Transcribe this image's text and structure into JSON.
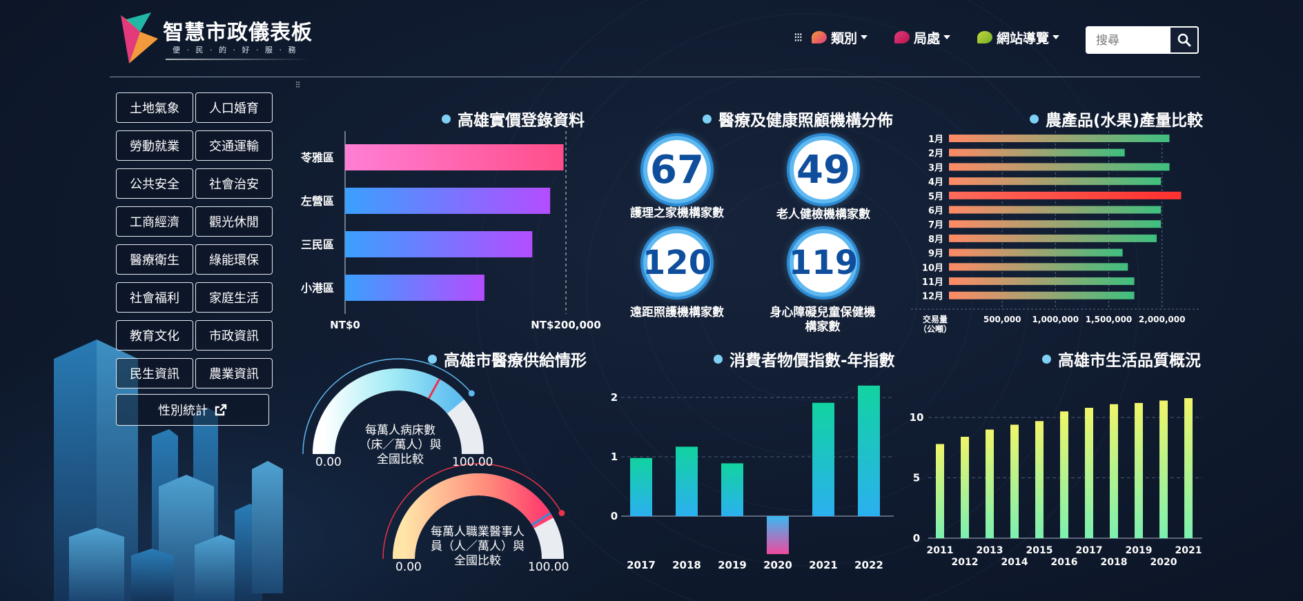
{
  "header": {
    "title": "智慧市政儀表板",
    "subtitle": "便 · 民 · 的 · 好 · 服 · 務",
    "nav": [
      {
        "label": "類別",
        "color": "#f39a3c"
      },
      {
        "label": "局處",
        "color": "#e23a7a"
      },
      {
        "label": "網站導覽",
        "color": "#a8c83a"
      }
    ],
    "search_placeholder": "搜尋"
  },
  "sidebar": {
    "categories": [
      "土地氣象",
      "人口婚育",
      "勞動就業",
      "交通運輸",
      "公共安全",
      "社會治安",
      "工商經濟",
      "觀光休閒",
      "醫療衛生",
      "綠能環保",
      "社會福利",
      "家庭生活",
      "教育文化",
      "市政資訊",
      "民生資訊",
      "農業資訊"
    ],
    "gender_label": "性別統計"
  },
  "panels": {
    "realestate": {
      "title": "高雄實價登錄資料",
      "chart_data": {
        "type": "bar",
        "orientation": "horizontal",
        "categories": [
          "苓雅區",
          "左營區",
          "三民區",
          "小港區"
        ],
        "values": [
          196000,
          184000,
          168000,
          125000
        ],
        "xlim": [
          0,
          200000
        ],
        "tick_labels": [
          "NT$0",
          "NT$200,000"
        ]
      }
    },
    "medical_institutions": {
      "title": "醫療及健康照顧機構分佈",
      "items": [
        {
          "value": "67",
          "label": "護理之家機構家數"
        },
        {
          "value": "49",
          "label": "老人健檢機構家數"
        },
        {
          "value": "120",
          "label": "遠距照護機構家數"
        },
        {
          "value": "119",
          "label": "身心障礙兒童保健機構家數"
        }
      ]
    },
    "agriculture": {
      "title": "農產品(水果)產量比較",
      "chart_data": {
        "type": "bar",
        "orientation": "horizontal",
        "categories": [
          "1月",
          "2月",
          "3月",
          "4月",
          "5月",
          "6月",
          "7月",
          "8月",
          "9月",
          "10月",
          "11月",
          "12月"
        ],
        "values": [
          2070000,
          1650000,
          2070000,
          1990000,
          2180000,
          1990000,
          1990000,
          1950000,
          1630000,
          1680000,
          1740000,
          1740000
        ],
        "xlim": [
          0,
          2300000
        ],
        "xlabel": "交易量（公噸）",
        "tick_labels": [
          "500,000",
          "1,000,000",
          "1,500,000",
          "2,000,000"
        ]
      }
    },
    "medical_supply": {
      "title": "高雄市醫療供給情形",
      "gauges": [
        {
          "label": "每萬人病床數（床／萬人）與全國比較",
          "value": 78,
          "min_label": "0.00",
          "max_label": "100.00"
        },
        {
          "label": "每萬人職業醫事人員（人／萬人）與全國比較",
          "value": 84,
          "min_label": "0.00",
          "max_label": "100.00"
        }
      ]
    },
    "cpi": {
      "title": "消費者物價指數-年指數",
      "chart_data": {
        "type": "bar",
        "categories": [
          "2017",
          "2018",
          "2019",
          "2020",
          "2021",
          "2022"
        ],
        "values": [
          0.98,
          1.17,
          0.89,
          -0.64,
          1.91,
          2.2
        ],
        "ylim": [
          -0.64,
          2.2
        ],
        "y_ticks": [
          "0",
          "1",
          "2"
        ]
      }
    },
    "quality": {
      "title": "高雄市生活品質概況",
      "chart_data": {
        "type": "bar",
        "categories": [
          "2011",
          "2012",
          "2013",
          "2014",
          "2015",
          "2016",
          "2017",
          "2018",
          "2019",
          "2020",
          "2021"
        ],
        "values": [
          7.8,
          8.4,
          9.0,
          9.4,
          9.7,
          10.5,
          10.8,
          11.1,
          11.2,
          11.4,
          11.6
        ],
        "ylim": [
          0,
          12.5
        ],
        "y_ticks": [
          "0",
          "5",
          "10"
        ]
      }
    }
  }
}
